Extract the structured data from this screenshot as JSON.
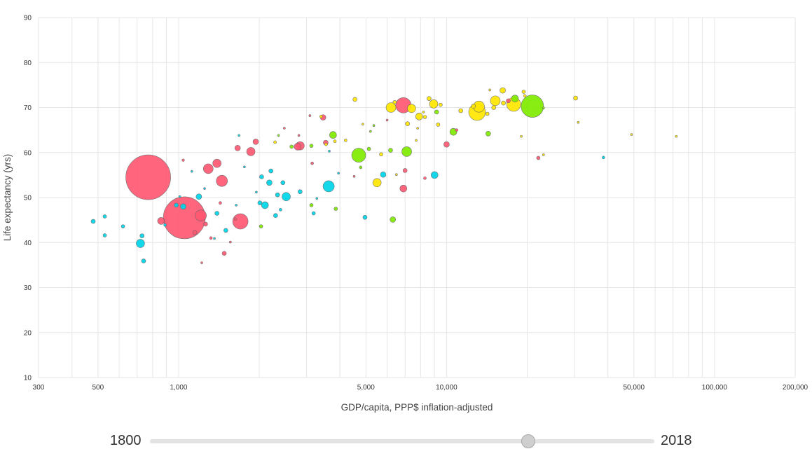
{
  "chart_data": {
    "type": "scatter",
    "xlabel": "GDP/capita, PPP$ inflation-adjusted",
    "ylabel": "Life expectancy (yrs)",
    "x_scale": "log",
    "xlim": [
      300,
      200000
    ],
    "ylim": [
      10,
      90
    ],
    "x_ticks": [
      {
        "value": 300,
        "label": "300"
      },
      {
        "value": 500,
        "label": "500"
      },
      {
        "value": 1000,
        "label": "1,000"
      },
      {
        "value": 5000,
        "label": "5,000"
      },
      {
        "value": 10000,
        "label": "10,000"
      },
      {
        "value": 50000,
        "label": "50,000"
      },
      {
        "value": 100000,
        "label": "100,000"
      },
      {
        "value": 200000,
        "label": "200,000"
      }
    ],
    "y_ticks": [
      10,
      20,
      30,
      40,
      50,
      60,
      70,
      80,
      90
    ],
    "grid": true,
    "colors": {
      "red": "#ff5872",
      "cyan": "#00d5e9",
      "green": "#7feb00",
      "yellow": "#ffe700"
    },
    "points": [
      {
        "x": 770,
        "y": 54.5,
        "s": 32,
        "c": "red"
      },
      {
        "x": 1050,
        "y": 45.5,
        "s": 30,
        "c": "red"
      },
      {
        "x": 20900,
        "y": 70.3,
        "s": 16,
        "c": "green"
      },
      {
        "x": 6900,
        "y": 70.5,
        "s": 11,
        "c": "red"
      },
      {
        "x": 13000,
        "y": 69.0,
        "s": 12,
        "c": "yellow"
      },
      {
        "x": 17800,
        "y": 70.7,
        "s": 10,
        "c": "yellow"
      },
      {
        "x": 15200,
        "y": 71.5,
        "s": 7,
        "c": "yellow"
      },
      {
        "x": 13200,
        "y": 70.2,
        "s": 8,
        "c": "yellow"
      },
      {
        "x": 1700,
        "y": 44.7,
        "s": 11,
        "c": "red"
      },
      {
        "x": 1450,
        "y": 53.7,
        "s": 8,
        "c": "red"
      },
      {
        "x": 1210,
        "y": 46.0,
        "s": 8,
        "c": "red"
      },
      {
        "x": 1290,
        "y": 56.4,
        "s": 7,
        "c": "red"
      },
      {
        "x": 1390,
        "y": 57.6,
        "s": 6,
        "c": "red"
      },
      {
        "x": 1860,
        "y": 60.2,
        "s": 6,
        "c": "red"
      },
      {
        "x": 2840,
        "y": 61.5,
        "s": 6,
        "c": "red"
      },
      {
        "x": 2780,
        "y": 61.3,
        "s": 5,
        "c": "red"
      },
      {
        "x": 4700,
        "y": 59.4,
        "s": 10,
        "c": "green"
      },
      {
        "x": 3630,
        "y": 52.5,
        "s": 8,
        "c": "cyan"
      },
      {
        "x": 2520,
        "y": 50.2,
        "s": 6,
        "c": "cyan"
      },
      {
        "x": 720,
        "y": 39.8,
        "s": 6,
        "c": "cyan"
      },
      {
        "x": 9020,
        "y": 55.0,
        "s": 5,
        "c": "cyan"
      },
      {
        "x": 7100,
        "y": 60.2,
        "s": 7,
        "c": "green"
      },
      {
        "x": 6200,
        "y": 70.0,
        "s": 7,
        "c": "yellow"
      },
      {
        "x": 7400,
        "y": 69.8,
        "s": 6,
        "c": "yellow"
      },
      {
        "x": 8950,
        "y": 70.8,
        "s": 6,
        "c": "yellow"
      },
      {
        "x": 5500,
        "y": 53.3,
        "s": 6,
        "c": "yellow"
      },
      {
        "x": 6900,
        "y": 52.0,
        "s": 5,
        "c": "red"
      },
      {
        "x": 7900,
        "y": 68.0,
        "s": 5,
        "c": "yellow"
      },
      {
        "x": 16200,
        "y": 73.8,
        "s": 4,
        "c": "yellow"
      },
      {
        "x": 18000,
        "y": 72.0,
        "s": 5,
        "c": "green"
      },
      {
        "x": 10600,
        "y": 64.6,
        "s": 5,
        "c": "green"
      },
      {
        "x": 2100,
        "y": 48.3,
        "s": 5,
        "c": "cyan"
      },
      {
        "x": 1190,
        "y": 50.2,
        "s": 4,
        "c": "cyan"
      },
      {
        "x": 3460,
        "y": 67.8,
        "s": 4,
        "c": "red"
      },
      {
        "x": 3770,
        "y": 63.9,
        "s": 5,
        "c": "green"
      },
      {
        "x": 6300,
        "y": 45.1,
        "s": 4,
        "c": "green"
      },
      {
        "x": 10000,
        "y": 61.8,
        "s": 4,
        "c": "red"
      },
      {
        "x": 1940,
        "y": 62.4,
        "s": 4,
        "c": "red"
      },
      {
        "x": 1660,
        "y": 61.0,
        "s": 4,
        "c": "red"
      },
      {
        "x": 1040,
        "y": 48.0,
        "s": 4,
        "c": "cyan"
      },
      {
        "x": 2180,
        "y": 53.3,
        "s": 4,
        "c": "cyan"
      },
      {
        "x": 2450,
        "y": 53.3,
        "s": 3,
        "c": "cyan"
      },
      {
        "x": 2040,
        "y": 54.6,
        "s": 3,
        "c": "cyan"
      },
      {
        "x": 2340,
        "y": 50.6,
        "s": 3,
        "c": "cyan"
      },
      {
        "x": 2010,
        "y": 48.8,
        "s": 3,
        "c": "cyan"
      },
      {
        "x": 1500,
        "y": 42.7,
        "s": 3,
        "c": "cyan"
      },
      {
        "x": 1390,
        "y": 46.5,
        "s": 3,
        "c": "cyan"
      },
      {
        "x": 2210,
        "y": 55.9,
        "s": 3,
        "c": "cyan"
      },
      {
        "x": 2840,
        "y": 51.3,
        "s": 3,
        "c": "cyan"
      },
      {
        "x": 5800,
        "y": 55.1,
        "s": 4,
        "c": "cyan"
      },
      {
        "x": 4960,
        "y": 45.6,
        "s": 3,
        "c": "cyan"
      },
      {
        "x": 38500,
        "y": 58.9,
        "s": 2,
        "c": "cyan"
      },
      {
        "x": 480,
        "y": 44.7,
        "s": 3,
        "c": "cyan"
      },
      {
        "x": 530,
        "y": 45.8,
        "s": 2.5,
        "c": "cyan"
      },
      {
        "x": 530,
        "y": 41.6,
        "s": 2.5,
        "c": "cyan"
      },
      {
        "x": 620,
        "y": 43.6,
        "s": 2.5,
        "c": "cyan"
      },
      {
        "x": 730,
        "y": 41.5,
        "s": 3,
        "c": "cyan"
      },
      {
        "x": 890,
        "y": 43.9,
        "s": 2,
        "c": "cyan"
      },
      {
        "x": 980,
        "y": 48.3,
        "s": 3,
        "c": "cyan"
      },
      {
        "x": 740,
        "y": 35.9,
        "s": 3,
        "c": "cyan"
      },
      {
        "x": 1260,
        "y": 44.1,
        "s": 3,
        "c": "red"
      },
      {
        "x": 1150,
        "y": 42.2,
        "s": 3,
        "c": "red"
      },
      {
        "x": 1480,
        "y": 37.6,
        "s": 3,
        "c": "red"
      },
      {
        "x": 860,
        "y": 44.8,
        "s": 5,
        "c": "red"
      },
      {
        "x": 2300,
        "y": 46.0,
        "s": 3,
        "c": "cyan"
      },
      {
        "x": 2400,
        "y": 47.3,
        "s": 2,
        "c": "cyan"
      },
      {
        "x": 3190,
        "y": 46.5,
        "s": 2.5,
        "c": "cyan"
      },
      {
        "x": 7000,
        "y": 56.0,
        "s": 3,
        "c": "red"
      },
      {
        "x": 3860,
        "y": 47.5,
        "s": 2.5,
        "c": "green"
      },
      {
        "x": 3130,
        "y": 48.3,
        "s": 2.5,
        "c": "green"
      },
      {
        "x": 2030,
        "y": 43.6,
        "s": 2.5,
        "c": "green"
      },
      {
        "x": 4780,
        "y": 56.7,
        "s": 2,
        "c": "green"
      },
      {
        "x": 6180,
        "y": 60.5,
        "s": 3,
        "c": "green"
      },
      {
        "x": 5130,
        "y": 60.8,
        "s": 2.5,
        "c": "green"
      },
      {
        "x": 9180,
        "y": 69.0,
        "s": 3,
        "c": "green"
      },
      {
        "x": 14300,
        "y": 64.2,
        "s": 3.5,
        "c": "green"
      },
      {
        "x": 2640,
        "y": 61.3,
        "s": 2.5,
        "c": "green"
      },
      {
        "x": 3130,
        "y": 61.5,
        "s": 2.5,
        "c": "green"
      },
      {
        "x": 4550,
        "y": 71.8,
        "s": 3,
        "c": "yellow"
      },
      {
        "x": 3830,
        "y": 62.5,
        "s": 2,
        "c": "yellow"
      },
      {
        "x": 5700,
        "y": 59.6,
        "s": 2.5,
        "c": "yellow"
      },
      {
        "x": 7150,
        "y": 66.4,
        "s": 3,
        "c": "yellow"
      },
      {
        "x": 9300,
        "y": 66.2,
        "s": 2.5,
        "c": "yellow"
      },
      {
        "x": 9500,
        "y": 70.6,
        "s": 2.5,
        "c": "yellow"
      },
      {
        "x": 8600,
        "y": 72.0,
        "s": 3,
        "c": "yellow"
      },
      {
        "x": 8300,
        "y": 67.9,
        "s": 2.5,
        "c": "yellow"
      },
      {
        "x": 11300,
        "y": 69.3,
        "s": 3,
        "c": "yellow"
      },
      {
        "x": 12600,
        "y": 70.3,
        "s": 3,
        "c": "yellow"
      },
      {
        "x": 14200,
        "y": 68.6,
        "s": 2.5,
        "c": "yellow"
      },
      {
        "x": 15000,
        "y": 70.0,
        "s": 3,
        "c": "yellow"
      },
      {
        "x": 16300,
        "y": 71.0,
        "s": 3,
        "c": "yellow"
      },
      {
        "x": 19400,
        "y": 73.5,
        "s": 2.5,
        "c": "yellow"
      },
      {
        "x": 19600,
        "y": 72.6,
        "s": 2,
        "c": "yellow"
      },
      {
        "x": 30300,
        "y": 72.1,
        "s": 3,
        "c": "yellow"
      },
      {
        "x": 6400,
        "y": 71.2,
        "s": 2.5,
        "c": "yellow"
      },
      {
        "x": 4200,
        "y": 62.7,
        "s": 2,
        "c": "yellow"
      },
      {
        "x": 3550,
        "y": 61.8,
        "s": 2,
        "c": "yellow"
      },
      {
        "x": 3400,
        "y": 68.0,
        "s": 2,
        "c": "yellow"
      },
      {
        "x": 2290,
        "y": 62.3,
        "s": 2,
        "c": "yellow"
      },
      {
        "x": 3540,
        "y": 62.2,
        "s": 3.5,
        "c": "red"
      },
      {
        "x": 3150,
        "y": 57.6,
        "s": 2,
        "c": "red"
      },
      {
        "x": 8300,
        "y": 54.3,
        "s": 2,
        "c": "red"
      },
      {
        "x": 10900,
        "y": 65.0,
        "s": 2,
        "c": "red"
      },
      {
        "x": 22000,
        "y": 58.8,
        "s": 2.5,
        "c": "red"
      },
      {
        "x": 17000,
        "y": 71.5,
        "s": 3,
        "c": "red"
      },
      {
        "x": 1040,
        "y": 58.3,
        "s": 1.8,
        "c": "red"
      },
      {
        "x": 1320,
        "y": 41.0,
        "s": 2,
        "c": "red"
      },
      {
        "x": 1630,
        "y": 45.2,
        "s": 2,
        "c": "red"
      },
      {
        "x": 1430,
        "y": 48.8,
        "s": 2,
        "c": "red"
      },
      {
        "x": 2810,
        "y": 63.8,
        "s": 1.5,
        "c": "red"
      },
      {
        "x": 4520,
        "y": 54.7,
        "s": 1.5,
        "c": "red"
      },
      {
        "x": 6000,
        "y": 67.2,
        "s": 1.5,
        "c": "red"
      },
      {
        "x": 2480,
        "y": 65.4,
        "s": 1.5,
        "c": "red"
      },
      {
        "x": 3090,
        "y": 68.2,
        "s": 1.5,
        "c": "red"
      },
      {
        "x": 1220,
        "y": 35.5,
        "s": 1.5,
        "c": "red"
      },
      {
        "x": 1560,
        "y": 40.1,
        "s": 1.5,
        "c": "red"
      },
      {
        "x": 23000,
        "y": 59.5,
        "s": 1.5,
        "c": "yellow"
      },
      {
        "x": 31000,
        "y": 66.7,
        "s": 1.5,
        "c": "yellow"
      },
      {
        "x": 49000,
        "y": 64.0,
        "s": 1.5,
        "c": "yellow"
      },
      {
        "x": 72000,
        "y": 63.6,
        "s": 1.5,
        "c": "yellow"
      },
      {
        "x": 23000,
        "y": 69.9,
        "s": 1.5,
        "c": "green"
      },
      {
        "x": 5200,
        "y": 64.7,
        "s": 1.5,
        "c": "green"
      },
      {
        "x": 2360,
        "y": 63.8,
        "s": 1.5,
        "c": "green"
      },
      {
        "x": 5350,
        "y": 66.0,
        "s": 1.5,
        "c": "green"
      },
      {
        "x": 4870,
        "y": 66.3,
        "s": 1.5,
        "c": "yellow"
      },
      {
        "x": 6500,
        "y": 55.1,
        "s": 1.5,
        "c": "yellow"
      },
      {
        "x": 7700,
        "y": 62.7,
        "s": 1.5,
        "c": "yellow"
      },
      {
        "x": 7800,
        "y": 65.4,
        "s": 1.5,
        "c": "yellow"
      },
      {
        "x": 8200,
        "y": 69.0,
        "s": 1.5,
        "c": "yellow"
      },
      {
        "x": 14500,
        "y": 73.9,
        "s": 1.5,
        "c": "yellow"
      },
      {
        "x": 19000,
        "y": 63.6,
        "s": 1.5,
        "c": "yellow"
      },
      {
        "x": 3650,
        "y": 60.3,
        "s": 1.5,
        "c": "cyan"
      },
      {
        "x": 1640,
        "y": 48.3,
        "s": 1.5,
        "c": "cyan"
      },
      {
        "x": 1950,
        "y": 51.2,
        "s": 1.5,
        "c": "cyan"
      },
      {
        "x": 1250,
        "y": 52.0,
        "s": 1.5,
        "c": "cyan"
      },
      {
        "x": 1760,
        "y": 56.8,
        "s": 1.5,
        "c": "cyan"
      },
      {
        "x": 3950,
        "y": 55.4,
        "s": 1.5,
        "c": "cyan"
      },
      {
        "x": 3280,
        "y": 49.8,
        "s": 1.5,
        "c": "cyan"
      },
      {
        "x": 1010,
        "y": 50.2,
        "s": 1.5,
        "c": "cyan"
      },
      {
        "x": 1360,
        "y": 40.9,
        "s": 1.5,
        "c": "cyan"
      },
      {
        "x": 1680,
        "y": 63.8,
        "s": 1.5,
        "c": "cyan"
      },
      {
        "x": 1120,
        "y": 55.8,
        "s": 1.5,
        "c": "cyan"
      }
    ]
  },
  "slider": {
    "start_label": "1800",
    "end_label": "2018",
    "value_fraction": 0.75
  }
}
